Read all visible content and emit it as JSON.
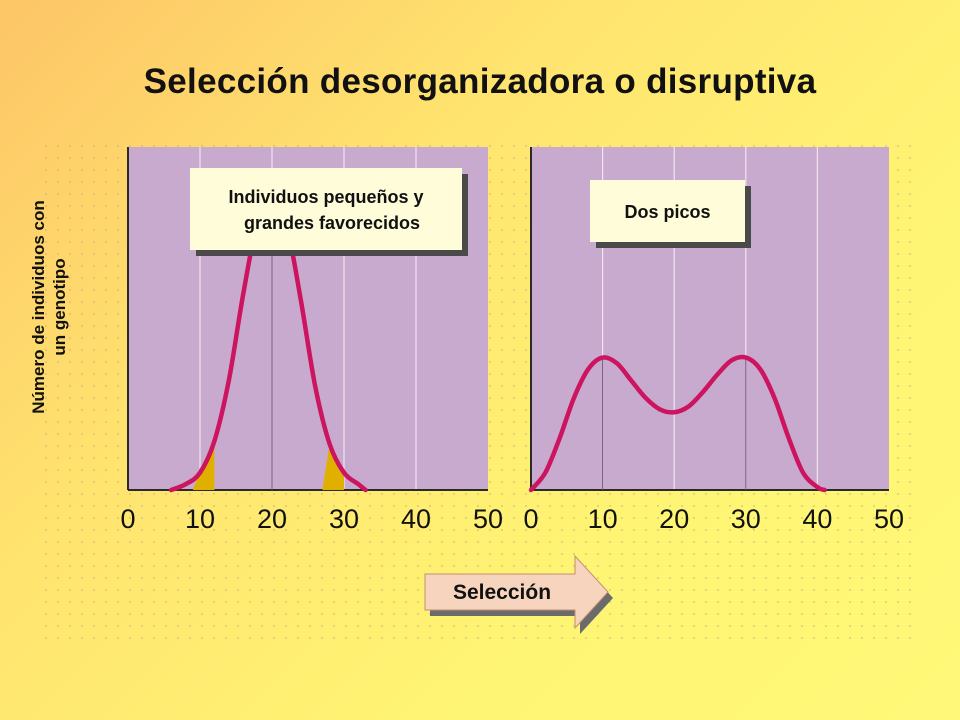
{
  "title": "Selección desorganizadora o disruptiva",
  "y_axis_label_line1": "Número de individuos con",
  "y_axis_label_line2": "un genotipo",
  "arrow_label": "Selección",
  "colors": {
    "plot_bg": "#C9AACF",
    "curve": "#CC1460",
    "favored_fill": "#E0B000",
    "box_bg": "#FFFCD9"
  },
  "chart_data": [
    {
      "type": "line",
      "annotation": [
        "Individuos pequeños y",
        "grandes favorecidos"
      ],
      "x_ticks": [
        0,
        10,
        20,
        30,
        40,
        50
      ],
      "xlim": [
        0,
        50
      ],
      "x": [
        6,
        8,
        10,
        12,
        14,
        16,
        18,
        20,
        22,
        24,
        26,
        28,
        30,
        32,
        33
      ],
      "y": [
        0.0,
        0.02,
        0.06,
        0.17,
        0.38,
        0.68,
        0.93,
        1.0,
        0.92,
        0.66,
        0.36,
        0.16,
        0.06,
        0.02,
        0.0
      ],
      "favored_ranges": [
        [
          9,
          12
        ],
        [
          27,
          30
        ]
      ],
      "ylim": [
        0,
        1.0
      ]
    },
    {
      "type": "line",
      "annotation": [
        "Dos picos"
      ],
      "x_ticks": [
        0,
        10,
        20,
        30,
        40,
        50
      ],
      "xlim": [
        0,
        50
      ],
      "x": [
        0,
        2,
        4,
        6,
        8,
        10,
        12,
        14,
        16,
        18,
        20,
        22,
        24,
        26,
        28,
        30,
        32,
        34,
        36,
        38,
        40,
        41
      ],
      "y": [
        0.0,
        0.06,
        0.18,
        0.32,
        0.42,
        0.46,
        0.44,
        0.38,
        0.32,
        0.28,
        0.27,
        0.29,
        0.34,
        0.4,
        0.45,
        0.46,
        0.42,
        0.32,
        0.18,
        0.06,
        0.01,
        0.0
      ],
      "ylim": [
        0,
        1.0
      ]
    }
  ]
}
